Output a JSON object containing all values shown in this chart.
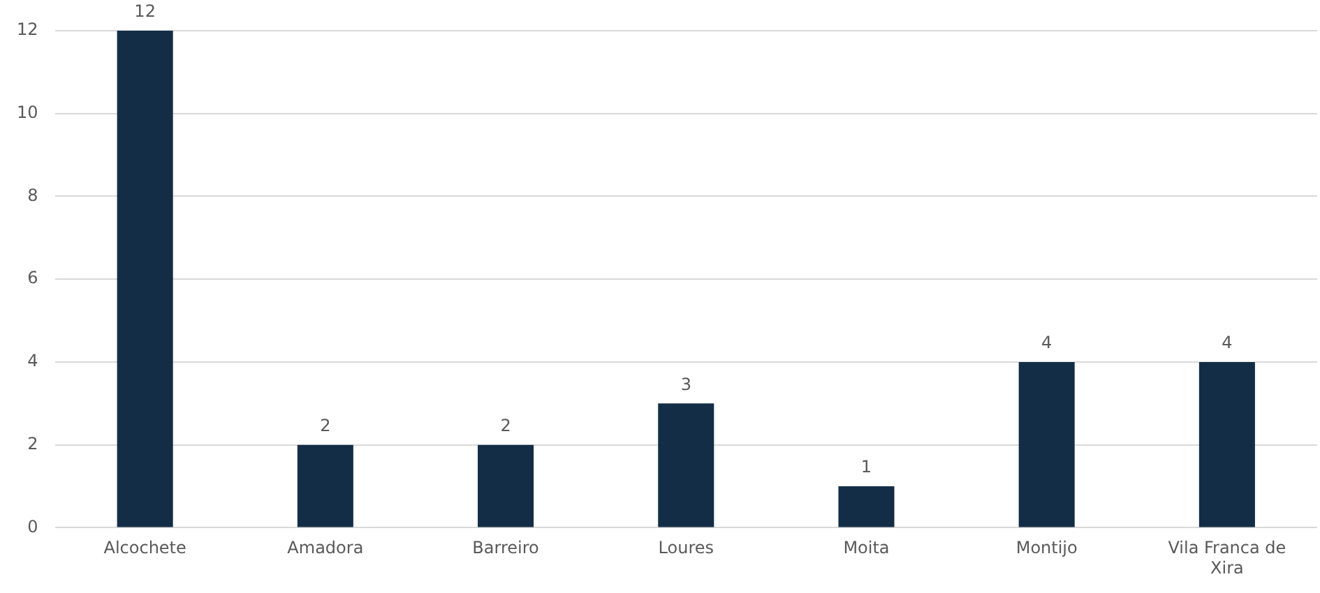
{
  "chart_data": {
    "type": "bar",
    "categories": [
      "Alcochete",
      "Amadora",
      "Barreiro",
      "Loures",
      "Moita",
      "Montijo",
      "Vila Franca de Xira"
    ],
    "values": [
      12,
      2,
      2,
      3,
      1,
      4,
      4
    ],
    "color": "#132d46",
    "ylim": [
      0,
      12
    ],
    "yticks": [
      0,
      2,
      4,
      6,
      8,
      10,
      12
    ],
    "grid": "y",
    "data_labels": true,
    "legend": false
  }
}
